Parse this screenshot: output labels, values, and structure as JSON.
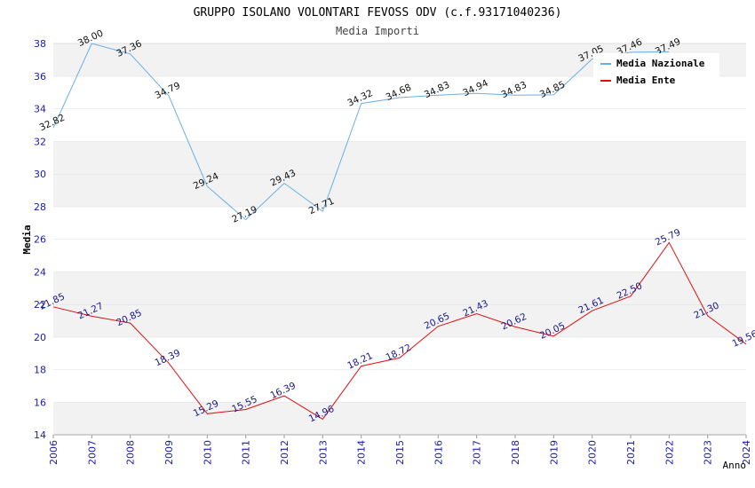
{
  "chart_data": {
    "type": "line",
    "title": "GRUPPO ISOLANO VOLONTARI FEVOSS ODV (c.f.93171040236)",
    "subtitle": "Media Importi",
    "xlabel": "Anno",
    "ylabel": "Media",
    "ylim": [
      14,
      38
    ],
    "yticks": [
      14,
      16,
      18,
      20,
      22,
      24,
      26,
      28,
      30,
      32,
      34,
      36,
      38
    ],
    "x": [
      "2006",
      "2007",
      "2008",
      "2009",
      "2010",
      "2011",
      "2012",
      "2013",
      "2014",
      "2015",
      "2016",
      "2017",
      "2018",
      "2019",
      "2020",
      "2021",
      "2022",
      "2023",
      "2024"
    ],
    "grid": "horizontal-bands",
    "legend_position": "top-right",
    "series": [
      {
        "name": "Media Nazionale",
        "color": "#6aaee6",
        "values": [
          32.82,
          38.0,
          37.36,
          34.79,
          29.24,
          27.19,
          29.43,
          27.71,
          34.32,
          34.68,
          34.83,
          34.94,
          34.83,
          34.85,
          37.05,
          37.46,
          37.49,
          null,
          null
        ],
        "labels": [
          "32.82",
          "38.00",
          "37.36",
          "34.79",
          "29.24",
          "27.19",
          "29.43",
          "27.71",
          "34.32",
          "34.68",
          "34.83",
          "34.94",
          "34.83",
          "34.85",
          "37.05",
          "37.46",
          "37.49",
          null,
          null
        ]
      },
      {
        "name": "Media Ente",
        "color": "#e01010",
        "values": [
          21.85,
          21.27,
          20.85,
          18.39,
          15.29,
          15.55,
          16.39,
          14.96,
          18.21,
          18.72,
          20.65,
          21.43,
          20.62,
          20.05,
          21.61,
          22.5,
          25.79,
          21.3,
          19.56
        ],
        "labels": [
          "21.85",
          "21.27",
          "20.85",
          "18.39",
          "15.29",
          "15.55",
          "16.39",
          "14.96",
          "18.21",
          "18.72",
          "20.65",
          "21.43",
          "20.62",
          "20.05",
          "21.61",
          "22.50",
          "25.79",
          "21.30",
          "19.56"
        ]
      }
    ]
  }
}
